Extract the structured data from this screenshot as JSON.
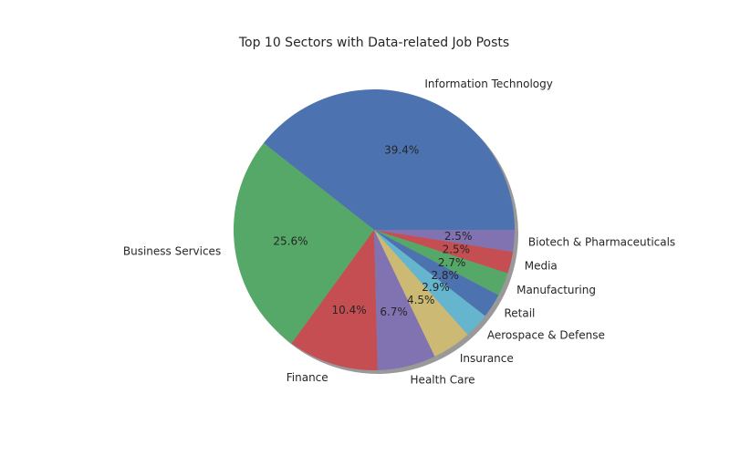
{
  "chart_data": {
    "type": "pie",
    "title": "Top 10 Sectors with Data-related Job Posts",
    "shadow": true,
    "start_angle_deg": 0,
    "direction": "counterclockwise",
    "slices": [
      {
        "label": "Information Technology",
        "value": 39.4,
        "pct_label": "39.4%",
        "color": "#4c72b0"
      },
      {
        "label": "Business Services",
        "value": 25.6,
        "pct_label": "25.6%",
        "color": "#55a868"
      },
      {
        "label": "Finance",
        "value": 10.4,
        "pct_label": "10.4%",
        "color": "#c44e52"
      },
      {
        "label": "Health Care",
        "value": 6.7,
        "pct_label": "6.7%",
        "color": "#8172b2"
      },
      {
        "label": "Insurance",
        "value": 4.5,
        "pct_label": "4.5%",
        "color": "#ccb974"
      },
      {
        "label": "Aerospace & Defense",
        "value": 2.9,
        "pct_label": "2.9%",
        "color": "#64b5cd"
      },
      {
        "label": "Retail",
        "value": 2.8,
        "pct_label": "2.8%",
        "color": "#4c72b0"
      },
      {
        "label": "Manufacturing",
        "value": 2.7,
        "pct_label": "2.7%",
        "color": "#55a868"
      },
      {
        "label": "Media",
        "value": 2.5,
        "pct_label": "2.5%",
        "color": "#c44e52"
      },
      {
        "label": "Biotech & Pharmaceuticals",
        "value": 2.5,
        "pct_label": "2.5%",
        "color": "#8172b2"
      }
    ]
  }
}
